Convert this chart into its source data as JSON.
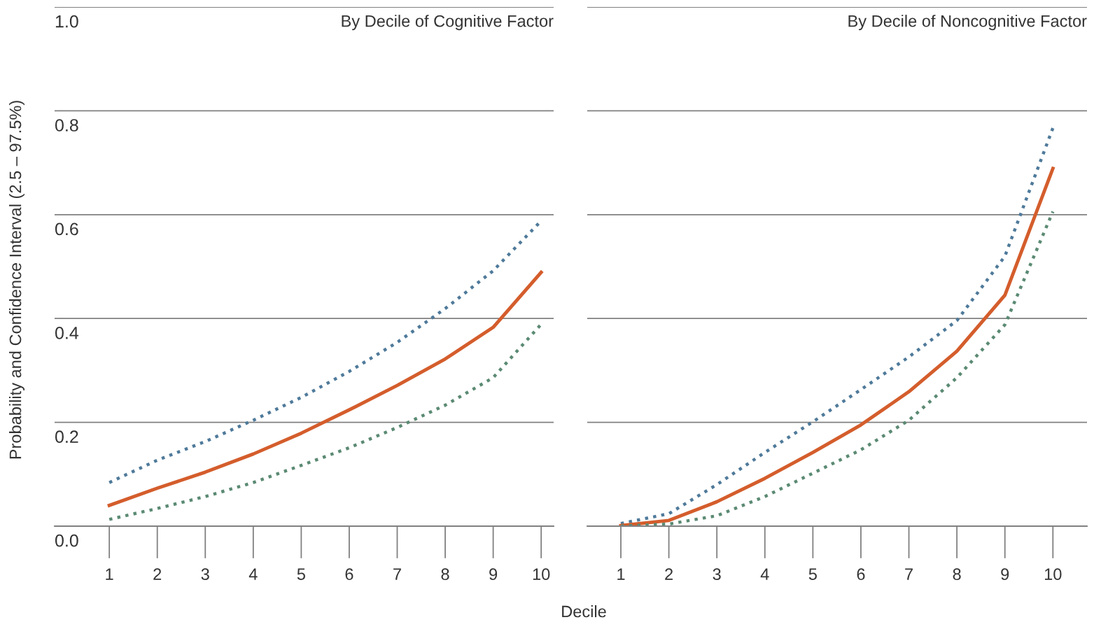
{
  "chart_data": [
    {
      "type": "line",
      "title": "By Decile of Cognitive Factor",
      "ylabel": "Probability and Confidence Interval (2.5 – 97.5%)",
      "xlabel": "Decile",
      "x": [
        1,
        2,
        3,
        4,
        5,
        6,
        7,
        8,
        9,
        10
      ],
      "xlim": [
        -0.14,
        10.26
      ],
      "xticks": [
        1,
        2,
        3,
        4,
        5,
        6,
        7,
        8,
        9,
        10
      ],
      "ylim": [
        0,
        1
      ],
      "yticks": [
        {
          "value": 0,
          "label": "0.0"
        },
        0.2,
        0.4,
        0.6,
        0.8,
        {
          "value": 1,
          "label": "1.0"
        }
      ],
      "grid": "y",
      "legend": false,
      "marker": "none",
      "series": [
        {
          "color": "#4f7a9a",
          "line_style": "dotted",
          "values": [
            0.084,
            0.127,
            0.163,
            0.204,
            0.248,
            0.298,
            0.354,
            0.419,
            0.492,
            0.588
          ]
        },
        {
          "color": "#d45d2c",
          "line_style": "solid",
          "values": [
            0.04,
            0.073,
            0.104,
            0.139,
            0.179,
            0.224,
            0.271,
            0.322,
            0.383,
            0.489
          ]
        },
        {
          "color": "#5b8a73",
          "line_style": "dotted",
          "values": [
            0.013,
            0.034,
            0.057,
            0.084,
            0.117,
            0.151,
            0.19,
            0.233,
            0.286,
            0.389
          ]
        }
      ]
    },
    {
      "type": "line",
      "title": "By Decile of Noncognitive Factor",
      "x": [
        1,
        2,
        3,
        4,
        5,
        6,
        7,
        8,
        9,
        10
      ],
      "xlim": [
        0.3,
        10.71
      ],
      "xticks": [
        1,
        2,
        3,
        4,
        5,
        6,
        7,
        8,
        9,
        10
      ],
      "ylim": [
        0,
        1
      ],
      "yticks": [
        0,
        0.2,
        0.4,
        0.6,
        0.8,
        1
      ],
      "grid": "y",
      "legend": false,
      "marker": "none",
      "tick_labels": "x",
      "series": [
        {
          "color": "#4f7a9a",
          "line_style": "dotted",
          "values": [
            0.005,
            0.024,
            0.08,
            0.142,
            0.201,
            0.263,
            0.326,
            0.396,
            0.52,
            0.767
          ]
        },
        {
          "color": "#d45d2c",
          "line_style": "solid",
          "values": [
            0.001,
            0.011,
            0.047,
            0.092,
            0.142,
            0.195,
            0.259,
            0.337,
            0.445,
            0.689
          ]
        },
        {
          "color": "#5b8a73",
          "line_style": "dotted",
          "values": [
            0,
            0.004,
            0.02,
            0.057,
            0.102,
            0.147,
            0.204,
            0.286,
            0.388,
            0.606
          ]
        }
      ]
    }
  ]
}
